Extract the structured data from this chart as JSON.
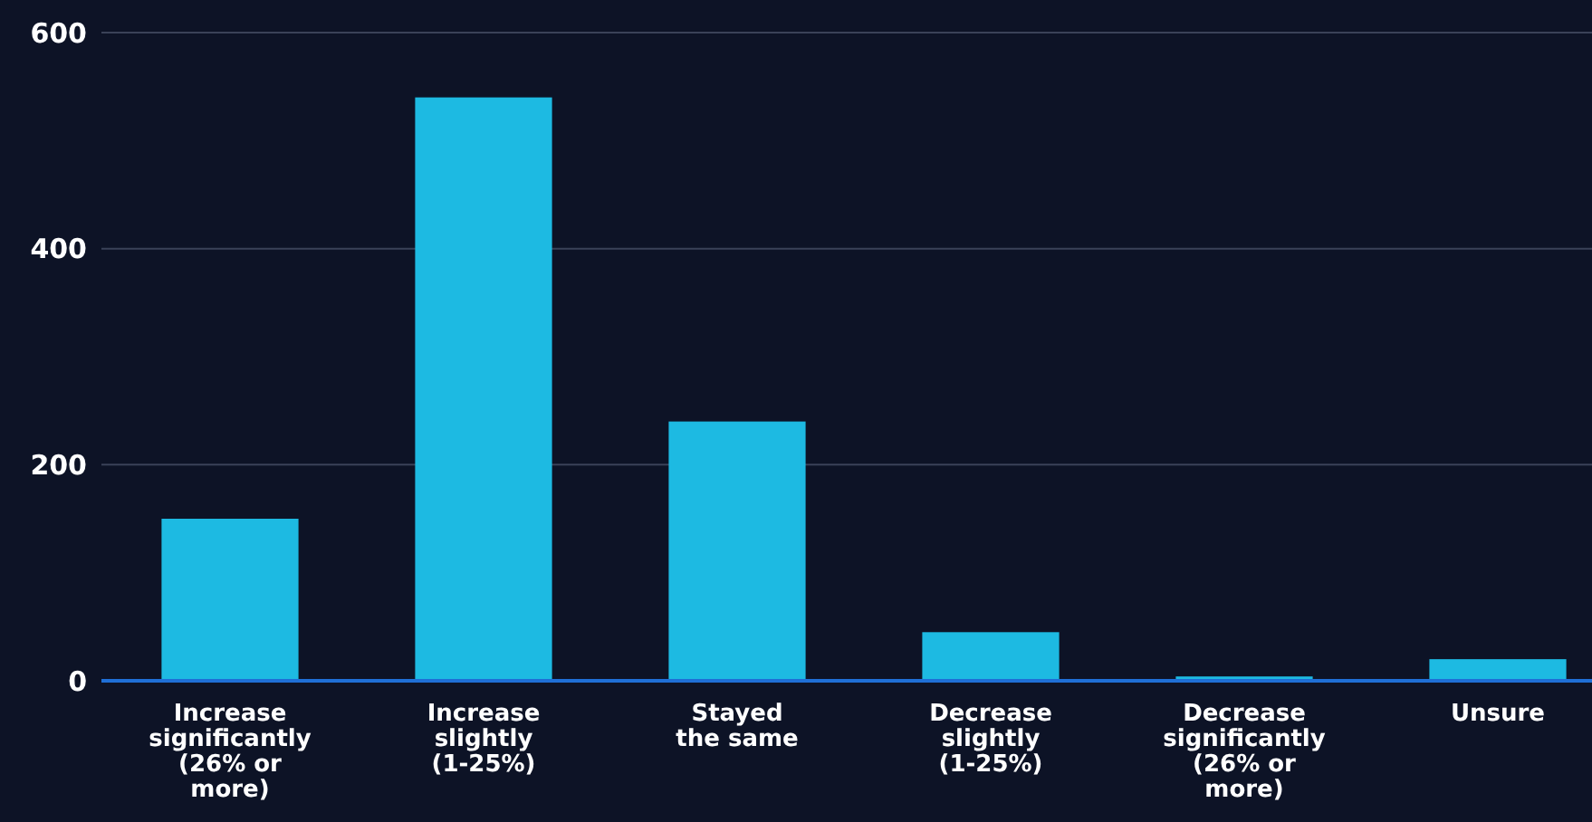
{
  "chart_data": {
    "type": "bar",
    "categories": [
      "Increase significantly (26% or more)",
      "Increase slightly (1-25%)",
      "Stayed the same",
      "Decrease slightly (1-25%)",
      "Decrease significantly (26% or more)",
      "Unsure"
    ],
    "values": [
      150,
      540,
      240,
      45,
      4,
      20
    ],
    "color": "#1dbae2",
    "ylim": [
      0,
      600
    ],
    "yticks": [
      0,
      200,
      400,
      600
    ],
    "grid": "y"
  }
}
